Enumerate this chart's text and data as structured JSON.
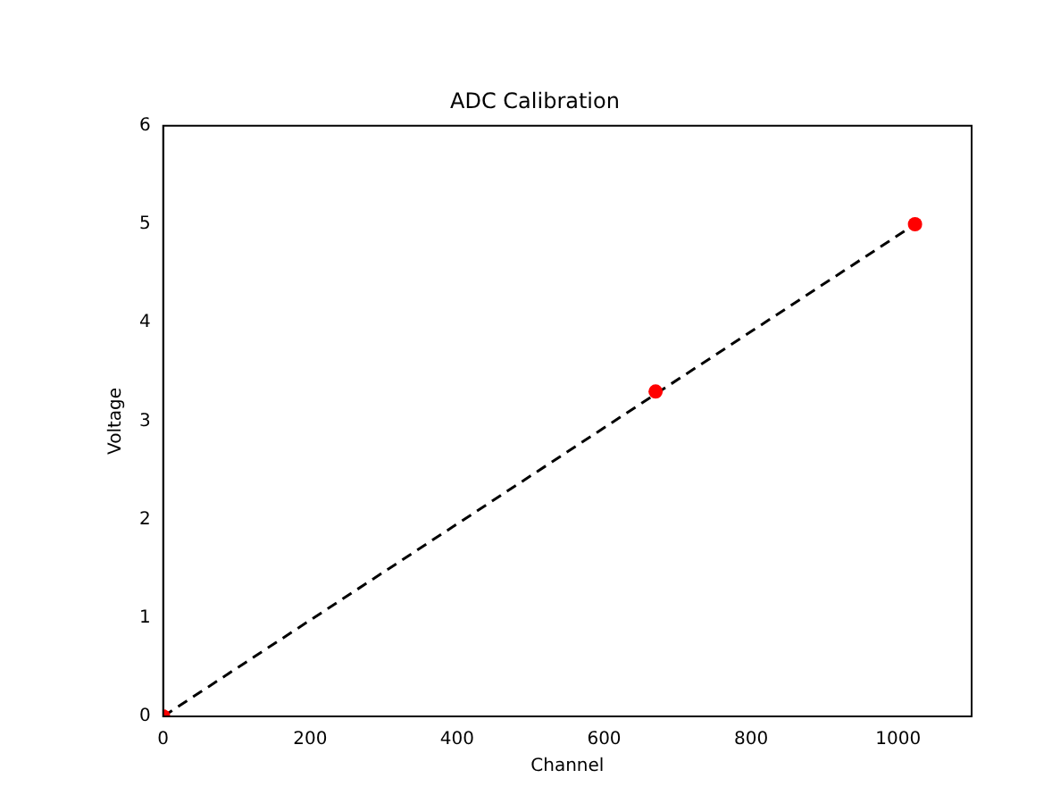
{
  "chart_data": {
    "type": "scatter",
    "title": "ADC Calibration",
    "xlabel": "Channel",
    "ylabel": "Voltage",
    "series": [
      {
        "type": "line",
        "x": [
          0,
          1023
        ],
        "values": [
          0,
          5
        ],
        "color": "#000000",
        "line_style": "dashed",
        "marker": "none"
      },
      {
        "x": [
          0,
          670,
          1023
        ],
        "values": [
          0,
          3.3,
          5
        ],
        "color": "#ff0000",
        "marker": "circle"
      }
    ],
    "xlim": [
      0,
      1100
    ],
    "xticks": [
      0,
      200,
      400,
      600,
      800,
      1000
    ],
    "ylim": [
      0,
      6
    ],
    "yticks": [
      0,
      1,
      2,
      3,
      4,
      5,
      6
    ],
    "grid": false,
    "legend": false
  }
}
